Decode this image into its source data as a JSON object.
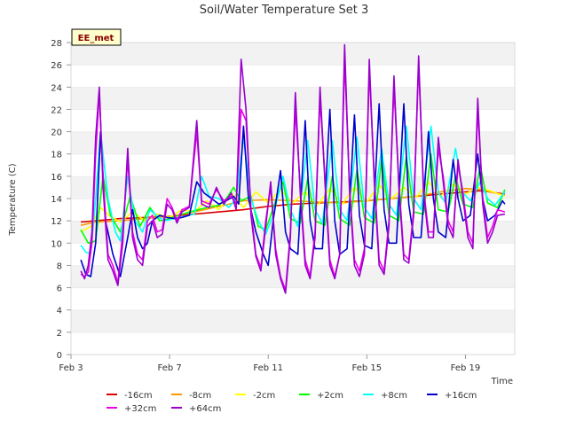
{
  "chart_data": {
    "type": "line",
    "title": "Soil/Water Temperature Set 3",
    "xlabel": "Time",
    "ylabel": "Temperature (C)",
    "badge": "EE_met",
    "xlim": [
      3.0,
      21.0
    ],
    "ylim": [
      0,
      28
    ],
    "yticks": [
      0,
      2,
      4,
      6,
      8,
      10,
      12,
      14,
      16,
      18,
      20,
      22,
      24,
      26,
      28
    ],
    "xticks": [
      {
        "value": 3,
        "label": "Feb 3"
      },
      {
        "value": 7,
        "label": "Feb 7"
      },
      {
        "value": 11,
        "label": "Feb 11"
      },
      {
        "value": 15,
        "label": "Feb 15"
      },
      {
        "value": 19,
        "label": "Feb 19"
      }
    ],
    "grid": "alternating horizontal bands",
    "legend_position": "bottom",
    "series": [
      {
        "name": "-16cm",
        "color": "#dd0000",
        "x": [
          3.4,
          4,
          5,
          6,
          7,
          8,
          9,
          10,
          11,
          12,
          13,
          14,
          15,
          16,
          17,
          18,
          19,
          19.6,
          20.0,
          20.6
        ],
        "y": [
          11.9,
          12.0,
          12.2,
          12.3,
          12.4,
          12.6,
          12.8,
          13.0,
          13.3,
          13.5,
          13.6,
          13.7,
          13.8,
          14.0,
          14.2,
          14.4,
          14.6,
          14.7,
          14.6,
          14.4
        ]
      },
      {
        "name": "-8cm",
        "color": "#ff9900",
        "x": [
          3.4,
          4,
          5,
          6,
          7,
          8,
          9,
          10,
          11,
          12,
          13,
          14,
          15,
          16,
          17,
          18,
          19,
          19.6,
          20.0,
          20.6
        ],
        "y": [
          11.6,
          11.9,
          12.0,
          12.2,
          12.4,
          12.8,
          13.3,
          13.8,
          13.9,
          13.8,
          13.7,
          13.6,
          13.8,
          14.0,
          14.2,
          14.6,
          14.9,
          14.8,
          14.6,
          14.3
        ]
      },
      {
        "name": "-2cm",
        "color": "#ffff00",
        "x": [
          3.4,
          3.8,
          4.2,
          4.6,
          5.0,
          5.5,
          6.0,
          6.5,
          7.0,
          7.5,
          8.0,
          8.5,
          9.0,
          9.5,
          10.0,
          10.5,
          11.0,
          11.5,
          12.0,
          12.5,
          13.0,
          13.5,
          14.0,
          14.5,
          15.0,
          15.5,
          16.0,
          16.5,
          17.0,
          17.5,
          18.0,
          18.5,
          19.0,
          19.5,
          20.0,
          20.6
        ],
        "y": [
          11.0,
          11.5,
          13.2,
          12.4,
          11.9,
          12.8,
          12.0,
          12.6,
          12.3,
          13.0,
          12.8,
          13.8,
          13.0,
          14.5,
          13.2,
          14.6,
          13.6,
          14.8,
          13.6,
          14.6,
          13.4,
          14.9,
          13.5,
          15.0,
          13.7,
          15.2,
          14.0,
          15.0,
          14.1,
          15.5,
          14.2,
          15.3,
          14.4,
          15.0,
          14.7,
          14.2
        ]
      },
      {
        "name": "+2cm",
        "color": "#00ff00",
        "x": [
          3.4,
          3.7,
          4.0,
          4.3,
          4.6,
          5.0,
          5.4,
          5.8,
          6.2,
          6.6,
          7.0,
          7.5,
          8.0,
          8.5,
          9.0,
          9.3,
          9.6,
          9.9,
          10.3,
          10.6,
          10.9,
          11.3,
          11.6,
          11.9,
          12.3,
          12.6,
          12.9,
          13.3,
          13.6,
          13.9,
          14.3,
          14.6,
          14.9,
          15.3,
          15.6,
          15.9,
          16.3,
          16.6,
          16.9,
          17.3,
          17.6,
          17.9,
          18.3,
          18.6,
          18.9,
          19.3,
          19.6,
          19.9,
          20.3,
          20.6
        ],
        "y": [
          11.2,
          10.0,
          10.2,
          16.0,
          12.5,
          11.0,
          14.2,
          11.5,
          13.2,
          12.0,
          12.2,
          12.6,
          12.9,
          13.2,
          13.4,
          14.0,
          15.0,
          13.8,
          14.2,
          11.5,
          11.2,
          13.8,
          15.5,
          12.2,
          11.8,
          15.8,
          12.0,
          11.6,
          16.0,
          12.2,
          11.6,
          16.6,
          12.3,
          11.8,
          17.5,
          12.5,
          12.0,
          17.8,
          12.8,
          12.6,
          18.0,
          13.0,
          12.8,
          16.0,
          13.5,
          13.2,
          17.0,
          13.6,
          13.2,
          14.8
        ]
      },
      {
        "name": "+8cm",
        "color": "#00ffff",
        "x": [
          3.4,
          3.6,
          3.8,
          4.0,
          4.2,
          4.5,
          4.8,
          5.0,
          5.3,
          5.6,
          5.9,
          6.2,
          6.5,
          6.8,
          7.2,
          7.6,
          8.0,
          8.3,
          8.6,
          9.0,
          9.4,
          9.7,
          10.0,
          10.3,
          10.6,
          10.9,
          11.2,
          11.6,
          11.9,
          12.2,
          12.6,
          12.9,
          13.2,
          13.6,
          13.9,
          14.2,
          14.6,
          14.9,
          15.2,
          15.6,
          15.9,
          16.2,
          16.6,
          16.9,
          17.2,
          17.6,
          17.9,
          18.2,
          18.6,
          18.9,
          19.2,
          19.6,
          19.9,
          20.2,
          20.6
        ],
        "y": [
          9.8,
          9.2,
          9.0,
          14.0,
          20.0,
          14.0,
          11.0,
          10.2,
          16.0,
          12.0,
          11.0,
          13.0,
          12.4,
          12.0,
          12.2,
          12.4,
          12.6,
          16.0,
          14.2,
          14.0,
          13.2,
          14.0,
          19.5,
          14.0,
          12.0,
          10.8,
          12.5,
          16.0,
          13.0,
          11.5,
          19.2,
          13.0,
          11.8,
          19.2,
          13.0,
          12.0,
          19.5,
          13.2,
          12.2,
          18.5,
          13.5,
          12.5,
          20.5,
          14.0,
          13.0,
          20.5,
          14.5,
          13.6,
          18.5,
          14.5,
          13.8,
          15.5,
          14.0,
          13.4,
          14.6
        ]
      },
      {
        "name": "+16cm",
        "color": "#0000cc",
        "x": [
          3.4,
          3.6,
          3.8,
          4.0,
          4.2,
          4.4,
          4.7,
          5.0,
          5.3,
          5.5,
          5.7,
          5.9,
          6.1,
          6.3,
          6.6,
          6.9,
          7.2,
          7.5,
          7.8,
          8.1,
          8.4,
          8.7,
          9.0,
          9.3,
          9.6,
          9.8,
          10.0,
          10.2,
          10.5,
          10.8,
          11.0,
          11.2,
          11.5,
          11.7,
          11.9,
          12.2,
          12.5,
          12.7,
          12.9,
          13.2,
          13.5,
          13.7,
          13.9,
          14.2,
          14.5,
          14.7,
          14.9,
          15.2,
          15.5,
          15.7,
          15.9,
          16.2,
          16.5,
          16.7,
          16.9,
          17.2,
          17.5,
          17.7,
          17.9,
          18.2,
          18.5,
          18.7,
          18.9,
          19.2,
          19.5,
          19.7,
          19.9,
          20.2,
          20.5,
          20.6
        ],
        "y": [
          8.5,
          7.2,
          7.0,
          10.0,
          20.0,
          12.0,
          9.0,
          7.0,
          10.5,
          13.0,
          10.5,
          9.5,
          10.0,
          12.0,
          12.5,
          12.3,
          12.2,
          12.3,
          12.5,
          15.5,
          14.5,
          14.0,
          13.5,
          13.8,
          14.2,
          13.5,
          20.5,
          14.0,
          11.0,
          9.0,
          8.0,
          12.0,
          16.5,
          11.0,
          9.5,
          9.0,
          21.0,
          12.0,
          9.5,
          9.5,
          22.0,
          12.0,
          9.0,
          9.5,
          21.5,
          12.5,
          9.8,
          9.5,
          22.5,
          13.0,
          10.0,
          10.0,
          22.5,
          13.5,
          10.5,
          10.5,
          20.0,
          14.0,
          11.0,
          10.5,
          17.5,
          14.0,
          12.0,
          12.5,
          18.0,
          14.0,
          12.0,
          12.5,
          13.8,
          13.5
        ]
      },
      {
        "name": "+32cm",
        "color": "#ee00ee",
        "x": [
          3.4,
          3.55,
          3.7,
          3.85,
          4.0,
          4.15,
          4.3,
          4.5,
          4.7,
          4.9,
          5.1,
          5.3,
          5.5,
          5.7,
          5.9,
          6.1,
          6.3,
          6.5,
          6.7,
          6.9,
          7.1,
          7.3,
          7.5,
          7.8,
          8.1,
          8.3,
          8.6,
          8.9,
          9.2,
          9.5,
          9.7,
          9.9,
          10.1,
          10.3,
          10.5,
          10.7,
          10.9,
          11.1,
          11.3,
          11.5,
          11.7,
          11.9,
          12.1,
          12.3,
          12.5,
          12.7,
          12.9,
          13.1,
          13.3,
          13.5,
          13.7,
          13.9,
          14.1,
          14.3,
          14.5,
          14.7,
          14.9,
          15.1,
          15.3,
          15.5,
          15.7,
          15.9,
          16.1,
          16.3,
          16.5,
          16.7,
          16.9,
          17.1,
          17.3,
          17.5,
          17.7,
          17.9,
          18.1,
          18.3,
          18.5,
          18.7,
          18.9,
          19.1,
          19.3,
          19.5,
          19.7,
          19.9,
          20.1,
          20.3,
          20.6
        ],
        "y": [
          7.2,
          7.0,
          7.4,
          10.0,
          18.0,
          23.5,
          16.0,
          9.0,
          8.0,
          6.4,
          11.0,
          17.5,
          11.0,
          9.0,
          8.5,
          12.0,
          12.5,
          11.0,
          11.2,
          14.0,
          13.2,
          12.0,
          13.0,
          13.3,
          20.0,
          13.8,
          13.5,
          14.8,
          13.8,
          14.2,
          13.5,
          22.0,
          21.0,
          13.0,
          9.0,
          7.8,
          12.0,
          15.0,
          9.5,
          7.0,
          5.8,
          11.0,
          22.0,
          15.0,
          8.5,
          7.0,
          11.0,
          23.0,
          16.0,
          8.5,
          7.0,
          9.0,
          26.5,
          15.0,
          8.5,
          7.5,
          9.5,
          25.5,
          16.0,
          8.5,
          7.5,
          12.0,
          24.0,
          15.5,
          9.0,
          8.5,
          13.0,
          26.0,
          15.0,
          11.0,
          11.0,
          18.5,
          16.0,
          12.0,
          11.0,
          17.0,
          14.5,
          11.0,
          10.0,
          22.0,
          14.0,
          10.5,
          11.5,
          13.0,
          12.8
        ]
      },
      {
        "name": "+64cm",
        "color": "#9900cc",
        "x": [
          3.4,
          3.55,
          3.7,
          3.85,
          4.0,
          4.15,
          4.3,
          4.5,
          4.7,
          4.9,
          5.1,
          5.3,
          5.5,
          5.7,
          5.9,
          6.1,
          6.3,
          6.5,
          6.7,
          6.9,
          7.1,
          7.3,
          7.5,
          7.8,
          8.1,
          8.3,
          8.6,
          8.9,
          9.2,
          9.5,
          9.7,
          9.9,
          10.1,
          10.3,
          10.5,
          10.7,
          10.9,
          11.1,
          11.3,
          11.5,
          11.7,
          11.9,
          12.1,
          12.3,
          12.5,
          12.7,
          12.9,
          13.1,
          13.3,
          13.5,
          13.7,
          13.9,
          14.1,
          14.3,
          14.5,
          14.7,
          14.9,
          15.1,
          15.3,
          15.5,
          15.7,
          15.9,
          16.1,
          16.3,
          16.5,
          16.7,
          16.9,
          17.1,
          17.3,
          17.5,
          17.7,
          17.9,
          18.1,
          18.3,
          18.5,
          18.7,
          18.9,
          19.1,
          19.3,
          19.5,
          19.7,
          19.9,
          20.1,
          20.3,
          20.6
        ],
        "y": [
          7.5,
          6.8,
          8.0,
          11.0,
          19.5,
          24.0,
          15.0,
          8.5,
          7.5,
          6.2,
          10.0,
          18.5,
          10.5,
          8.5,
          8.0,
          11.5,
          12.0,
          10.5,
          10.8,
          13.5,
          13.0,
          11.8,
          12.8,
          13.2,
          21.0,
          13.5,
          13.2,
          15.0,
          13.5,
          14.5,
          13.0,
          26.5,
          22.0,
          12.5,
          8.8,
          7.5,
          11.5,
          15.5,
          9.0,
          6.8,
          5.5,
          10.5,
          23.5,
          14.5,
          8.0,
          6.8,
          10.5,
          24.0,
          15.5,
          8.0,
          6.8,
          9.0,
          27.8,
          14.5,
          8.0,
          7.0,
          9.0,
          26.5,
          15.5,
          8.0,
          7.2,
          11.5,
          25.0,
          15.0,
          8.5,
          8.2,
          12.5,
          26.8,
          14.5,
          10.5,
          10.5,
          19.5,
          15.5,
          11.5,
          10.5,
          17.5,
          14.0,
          10.5,
          9.5,
          23.0,
          13.5,
          10.0,
          11.0,
          12.5,
          12.6
        ]
      }
    ]
  }
}
